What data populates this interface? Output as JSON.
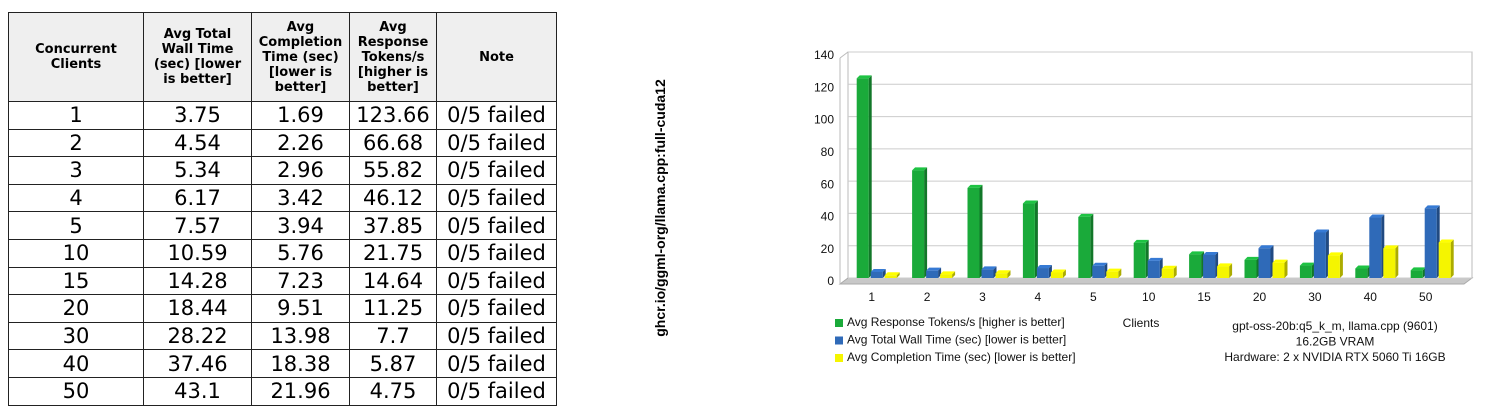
{
  "table": {
    "headers": [
      "Concurrent Clients",
      "Avg Total Wall Time (sec) [lower is better]",
      "Avg Completion Time (sec) [lower is better]",
      "Avg Response Tokens/s [higher is better]",
      "Note"
    ],
    "rows": [
      [
        "1",
        "3.75",
        "1.69",
        "123.66",
        "0/5 failed"
      ],
      [
        "2",
        "4.54",
        "2.26",
        "66.68",
        "0/5 failed"
      ],
      [
        "3",
        "5.34",
        "2.96",
        "55.82",
        "0/5 failed"
      ],
      [
        "4",
        "6.17",
        "3.42",
        "46.12",
        "0/5 failed"
      ],
      [
        "5",
        "7.57",
        "3.94",
        "37.85",
        "0/5 failed"
      ],
      [
        "10",
        "10.59",
        "5.76",
        "21.75",
        "0/5 failed"
      ],
      [
        "15",
        "14.28",
        "7.23",
        "14.64",
        "0/5 failed"
      ],
      [
        "20",
        "18.44",
        "9.51",
        "11.25",
        "0/5 failed"
      ],
      [
        "30",
        "28.22",
        "13.98",
        "7.7",
        "0/5 failed"
      ],
      [
        "40",
        "37.46",
        "18.38",
        "5.87",
        "0/5 failed"
      ],
      [
        "50",
        "43.1",
        "21.96",
        "4.75",
        "0/5 failed"
      ]
    ]
  },
  "side_label": "ghcr.io/ggml-org/llama.cpp:full-cuda12",
  "chart_data": {
    "type": "bar",
    "x_label": "Clients",
    "categories": [
      "1",
      "2",
      "3",
      "4",
      "5",
      "10",
      "15",
      "20",
      "30",
      "40",
      "50"
    ],
    "series": [
      {
        "name": "Avg Response Tokens/s [higher is better]",
        "color": "#1aaa3a",
        "values": [
          123.66,
          66.68,
          55.82,
          46.12,
          37.85,
          21.75,
          14.64,
          11.25,
          7.7,
          5.87,
          4.75
        ]
      },
      {
        "name": "Avg Total Wall Time (sec) [lower is better]",
        "color": "#2f6ab8",
        "values": [
          3.75,
          4.54,
          5.34,
          6.17,
          7.57,
          10.59,
          14.28,
          18.44,
          28.22,
          37.46,
          43.1
        ]
      },
      {
        "name": "Avg Completion Time (sec) [lower is better]",
        "color": "#f5f500",
        "values": [
          1.69,
          2.26,
          2.96,
          3.42,
          3.94,
          5.76,
          7.23,
          9.51,
          13.98,
          18.38,
          21.96
        ]
      }
    ],
    "ylim": [
      0,
      140
    ],
    "yticks": [
      0,
      20,
      40,
      60,
      80,
      100,
      120,
      140
    ],
    "grid": true,
    "annotations": [
      "gpt-oss-20b:q5_k_m, llama.cpp (9601)",
      "16.2GB VRAM",
      "Hardware: 2 x NVIDIA RTX 5060 Ti 16GB"
    ]
  }
}
